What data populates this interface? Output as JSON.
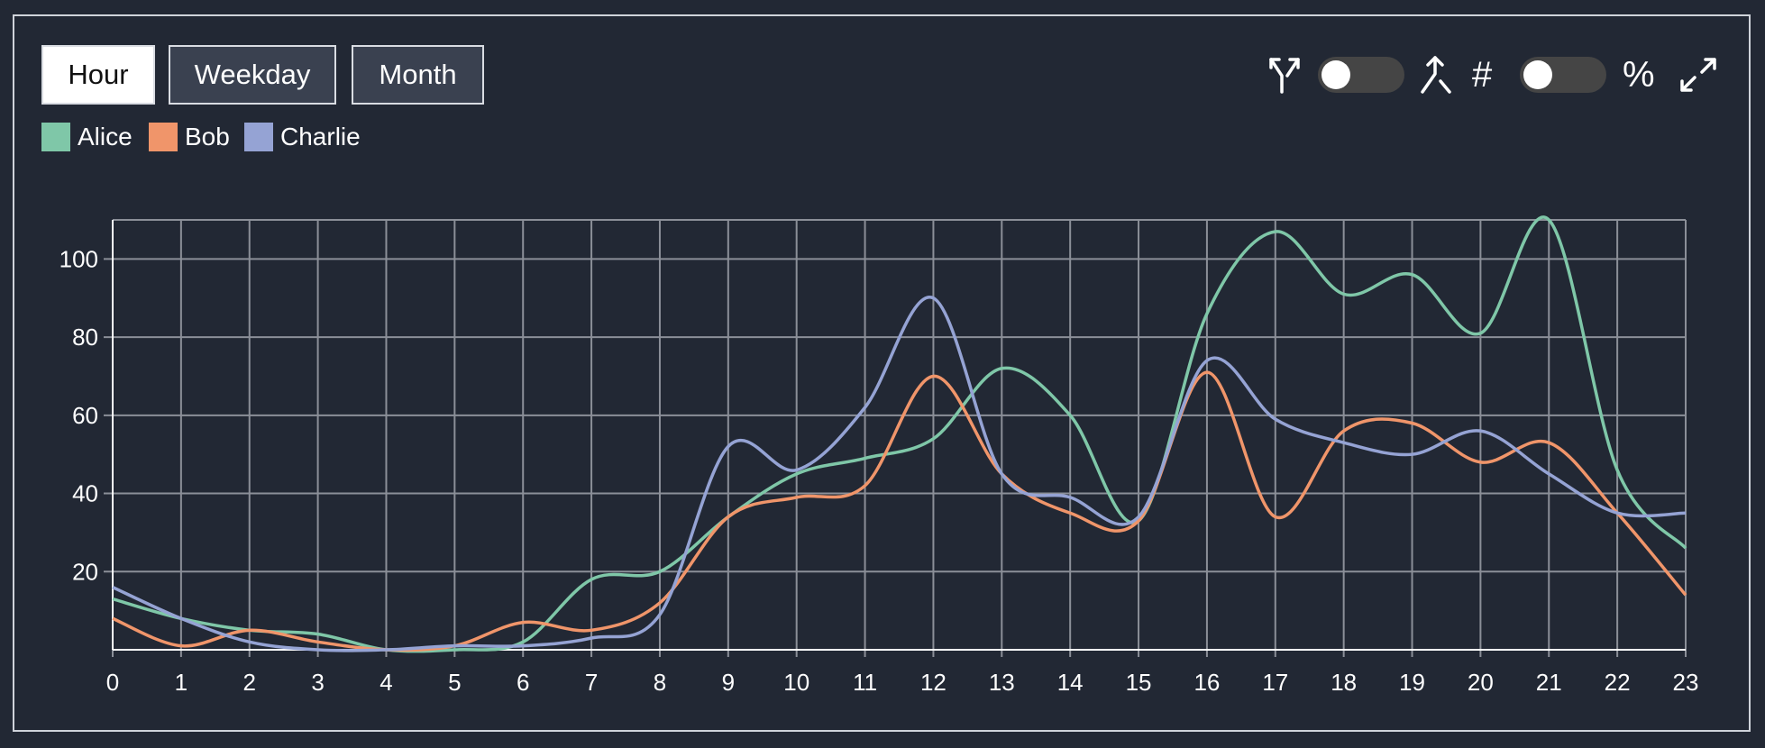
{
  "toolbar": {
    "buttons": [
      {
        "label": "Hour",
        "active": true
      },
      {
        "label": "Weekday",
        "active": false
      },
      {
        "label": "Month",
        "active": false
      }
    ],
    "hash_symbol": "#",
    "percent_symbol": "%",
    "icons": {
      "split": "split-arrows-icon",
      "merge": "merge-arrows-icon",
      "expand": "expand-icon"
    },
    "toggles": {
      "stacked": false,
      "percent": false
    }
  },
  "legend": [
    {
      "name": "Alice",
      "color": "#7fc7a8"
    },
    {
      "name": "Bob",
      "color": "#f0956a"
    },
    {
      "name": "Charlie",
      "color": "#95a3d4"
    }
  ],
  "chart_data": {
    "type": "line",
    "x": [
      0,
      1,
      2,
      3,
      4,
      5,
      6,
      7,
      8,
      9,
      10,
      11,
      12,
      13,
      14,
      15,
      16,
      17,
      18,
      19,
      20,
      21,
      22,
      23
    ],
    "series": [
      {
        "name": "Alice",
        "color": "#7fc7a8",
        "values": [
          13,
          8,
          5,
          4,
          0,
          0,
          2,
          18,
          20,
          34,
          45,
          49,
          54,
          72,
          60,
          33,
          86,
          107,
          91,
          96,
          81,
          110,
          46,
          26
        ]
      },
      {
        "name": "Bob",
        "color": "#f0956a",
        "values": [
          8,
          1,
          5,
          2,
          0,
          1,
          7,
          5,
          12,
          34,
          39,
          42,
          70,
          45,
          35,
          33,
          71,
          34,
          56,
          58,
          48,
          53,
          35,
          14
        ]
      },
      {
        "name": "Charlie",
        "color": "#95a3d4",
        "values": [
          16,
          8,
          2,
          0,
          0,
          1,
          1,
          3,
          9,
          52,
          46,
          62,
          90,
          45,
          39,
          34,
          74,
          59,
          53,
          50,
          56,
          45,
          35,
          35
        ]
      }
    ],
    "xlabel": "",
    "ylabel": "",
    "y_ticks": [
      20,
      40,
      60,
      80,
      100
    ],
    "xlim": [
      0,
      23
    ],
    "ylim": [
      0,
      110
    ],
    "grid": true,
    "legend": "top-left"
  }
}
